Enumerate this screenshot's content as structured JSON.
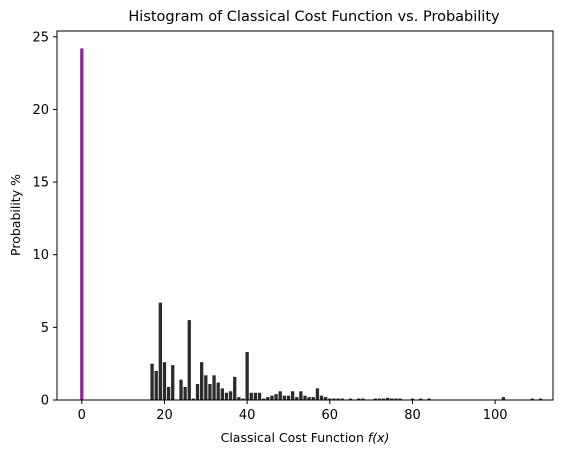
{
  "chart_data": {
    "type": "bar",
    "title": "Histogram of Classical Cost Function vs. Probability",
    "xlabel_prefix": "Classical Cost Function ",
    "xlabel_var": "f(x)",
    "ylabel": "Probability %",
    "xlim": [
      -6,
      114
    ],
    "ylim": [
      0,
      25.4
    ],
    "xticks": [
      0,
      20,
      40,
      60,
      80,
      100
    ],
    "yticks": [
      0,
      5,
      10,
      15,
      20,
      25
    ],
    "grid": false,
    "colors": {
      "highlight": "#8b2a93",
      "bar": "#2b2b2b"
    },
    "bars": [
      {
        "x": 0,
        "y": 24.2,
        "highlight": true
      },
      {
        "x": 17,
        "y": 2.5
      },
      {
        "x": 18,
        "y": 2.0
      },
      {
        "x": 19,
        "y": 6.7
      },
      {
        "x": 20,
        "y": 2.6
      },
      {
        "x": 21,
        "y": 0.9
      },
      {
        "x": 22,
        "y": 2.4
      },
      {
        "x": 24,
        "y": 1.4
      },
      {
        "x": 25,
        "y": 0.9
      },
      {
        "x": 26,
        "y": 5.5
      },
      {
        "x": 27,
        "y": 0.1
      },
      {
        "x": 28,
        "y": 1.1
      },
      {
        "x": 29,
        "y": 2.6
      },
      {
        "x": 30,
        "y": 1.7
      },
      {
        "x": 31,
        "y": 1.1
      },
      {
        "x": 32,
        "y": 1.7
      },
      {
        "x": 33,
        "y": 1.2
      },
      {
        "x": 34,
        "y": 0.8
      },
      {
        "x": 35,
        "y": 0.5
      },
      {
        "x": 36,
        "y": 0.6
      },
      {
        "x": 37,
        "y": 1.6
      },
      {
        "x": 38,
        "y": 0.2
      },
      {
        "x": 39,
        "y": 0.1
      },
      {
        "x": 40,
        "y": 3.3
      },
      {
        "x": 41,
        "y": 0.5
      },
      {
        "x": 42,
        "y": 0.5
      },
      {
        "x": 43,
        "y": 0.5
      },
      {
        "x": 44,
        "y": 0.1
      },
      {
        "x": 45,
        "y": 0.2
      },
      {
        "x": 46,
        "y": 0.3
      },
      {
        "x": 47,
        "y": 0.4
      },
      {
        "x": 48,
        "y": 0.6
      },
      {
        "x": 49,
        "y": 0.3
      },
      {
        "x": 50,
        "y": 0.3
      },
      {
        "x": 51,
        "y": 0.6
      },
      {
        "x": 52,
        "y": 0.2
      },
      {
        "x": 53,
        "y": 0.6
      },
      {
        "x": 54,
        "y": 0.3
      },
      {
        "x": 55,
        "y": 0.2
      },
      {
        "x": 56,
        "y": 0.2
      },
      {
        "x": 57,
        "y": 0.8
      },
      {
        "x": 58,
        "y": 0.3
      },
      {
        "x": 59,
        "y": 0.2
      },
      {
        "x": 60,
        "y": 0.1
      },
      {
        "x": 61,
        "y": 0.1
      },
      {
        "x": 62,
        "y": 0.1
      },
      {
        "x": 63,
        "y": 0.1
      },
      {
        "x": 65,
        "y": 0.1
      },
      {
        "x": 67,
        "y": 0.1
      },
      {
        "x": 68,
        "y": 0.1
      },
      {
        "x": 71,
        "y": 0.1
      },
      {
        "x": 72,
        "y": 0.1
      },
      {
        "x": 73,
        "y": 0.1
      },
      {
        "x": 74,
        "y": 0.15
      },
      {
        "x": 75,
        "y": 0.1
      },
      {
        "x": 76,
        "y": 0.1
      },
      {
        "x": 77,
        "y": 0.1
      },
      {
        "x": 80,
        "y": 0.1
      },
      {
        "x": 82,
        "y": 0.1
      },
      {
        "x": 84,
        "y": 0.1
      },
      {
        "x": 102,
        "y": 0.2
      },
      {
        "x": 109,
        "y": 0.1
      },
      {
        "x": 111,
        "y": 0.1
      }
    ]
  }
}
